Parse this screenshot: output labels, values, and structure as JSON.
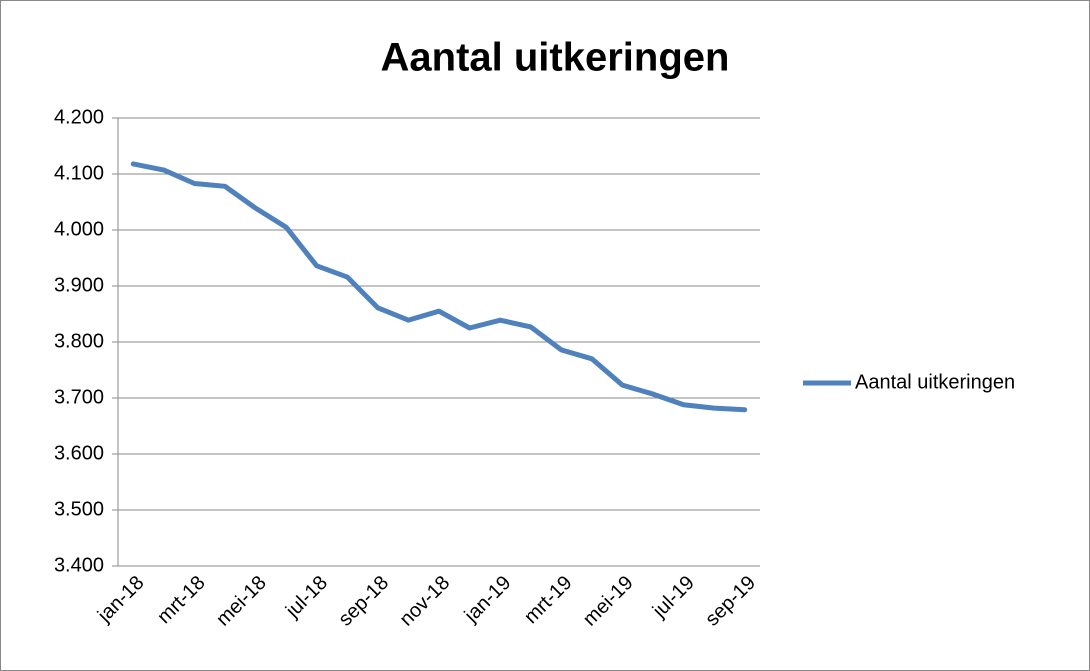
{
  "chart_data": {
    "type": "line",
    "title": "Aantal uitkeringen",
    "categories": [
      "jan-18",
      null,
      "mrt-18",
      null,
      "mei-18",
      null,
      "jul-18",
      null,
      "sep-18",
      null,
      "nov-18",
      null,
      "jan-19",
      null,
      "mrt-19",
      null,
      "mei-19",
      null,
      "jul-19",
      null,
      "sep-19"
    ],
    "series": [
      {
        "name": "Aantal uitkeringen",
        "color": "#4f81bd",
        "values": [
          4118,
          4107,
          4083,
          4078,
          4039,
          4005,
          3936,
          3916,
          3861,
          3839,
          3855,
          3825,
          3839,
          3827,
          3786,
          3770,
          3723,
          3707,
          3688,
          3682,
          3679
        ]
      }
    ],
    "ylim": [
      3400,
      4200
    ],
    "yticks": [
      {
        "value": 3400,
        "label": "3.400"
      },
      {
        "value": 3500,
        "label": "3.500"
      },
      {
        "value": 3600,
        "label": "3.600"
      },
      {
        "value": 3700,
        "label": "3.700"
      },
      {
        "value": 3800,
        "label": "3.800"
      },
      {
        "value": 3900,
        "label": "3.900"
      },
      {
        "value": 4000,
        "label": "4.000"
      },
      {
        "value": 4100,
        "label": "4.100"
      },
      {
        "value": 4200,
        "label": "4.200"
      }
    ],
    "grid": true,
    "legend": "right"
  }
}
